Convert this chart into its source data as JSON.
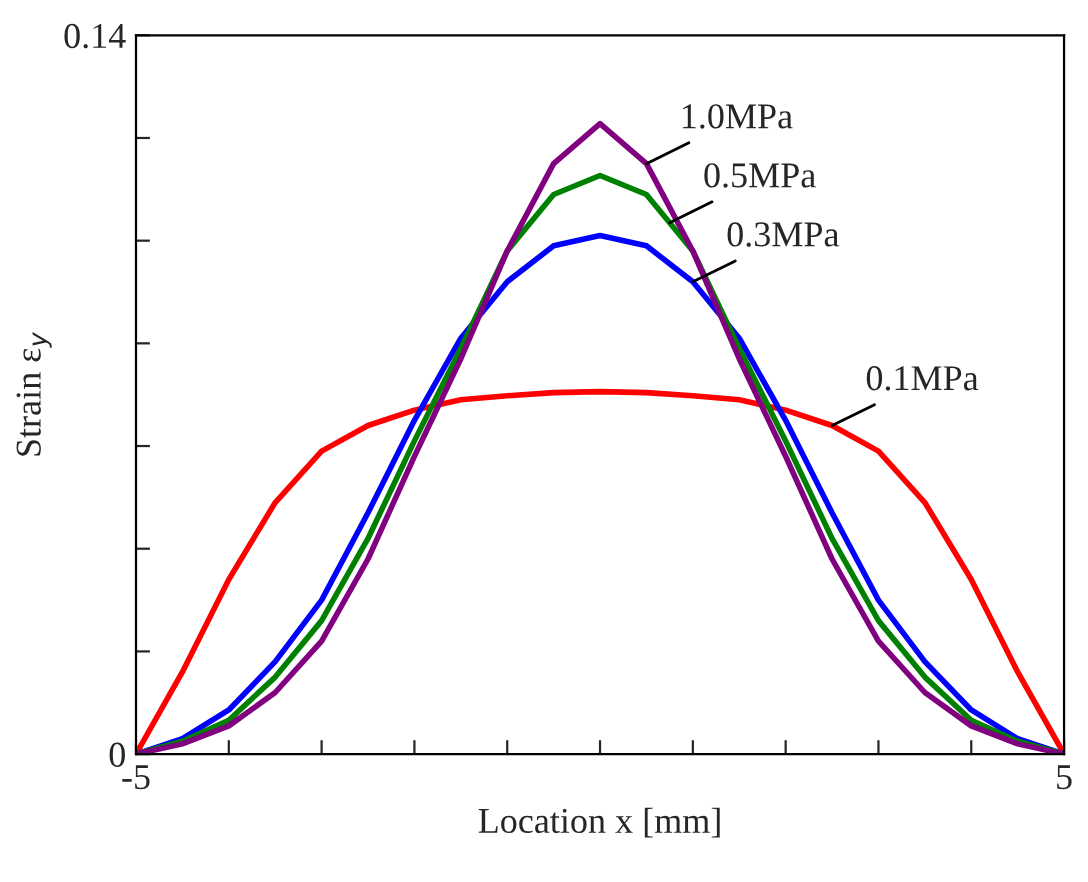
{
  "chart_data": {
    "type": "line",
    "xlabel": "Location x [mm]",
    "ylabel": "Strain ε$_{y}$",
    "x": [
      -5,
      -4.5,
      -4,
      -3.5,
      -3,
      -2.5,
      -2,
      -1.5,
      -1,
      -0.5,
      0,
      0.5,
      1,
      1.5,
      2,
      2.5,
      3,
      3.5,
      4,
      4.5,
      5
    ],
    "series": [
      {
        "color": "#ff0000",
        "values": [
          0,
          0.016,
          0.034,
          0.049,
          0.059,
          0.064,
          0.067,
          0.069,
          0.0698,
          0.0704,
          0.0706,
          0.0704,
          0.0698,
          0.069,
          0.067,
          0.064,
          0.059,
          0.049,
          0.034,
          0.016,
          0
        ]
      },
      {
        "color": "#0000ff",
        "values": [
          0,
          0.003,
          0.0086,
          0.018,
          0.03,
          0.047,
          0.065,
          0.081,
          0.092,
          0.099,
          0.101,
          0.099,
          0.092,
          0.081,
          0.065,
          0.047,
          0.03,
          0.018,
          0.0086,
          0.003,
          0
        ]
      },
      {
        "color": "#008000",
        "values": [
          0,
          0.0025,
          0.0066,
          0.015,
          0.026,
          0.042,
          0.061,
          0.079,
          0.098,
          0.109,
          0.1127,
          0.109,
          0.098,
          0.079,
          0.061,
          0.042,
          0.026,
          0.015,
          0.0066,
          0.0025,
          0
        ]
      },
      {
        "color": "#800080",
        "values": [
          0,
          0.002,
          0.0055,
          0.012,
          0.022,
          0.038,
          0.058,
          0.077,
          0.098,
          0.115,
          0.1228,
          0.115,
          0.098,
          0.077,
          0.058,
          0.038,
          0.022,
          0.012,
          0.0055,
          0.002,
          0
        ]
      }
    ],
    "annotations": [
      {
        "text": "1.0MPa",
        "x": 0.5,
        "y": 0.115
      },
      {
        "text": "0.5MPa",
        "x": 0.75,
        "y": 0.1035
      },
      {
        "text": "0.3MPa",
        "x": 1,
        "y": 0.092
      },
      {
        "text": "0.1MPa",
        "x": 2.5,
        "y": 0.064
      }
    ],
    "xlim": [
      -5,
      5
    ],
    "ylim": [
      0,
      0.14
    ],
    "xticks": [
      -5,
      {
        "value": -4,
        "label": null
      },
      {
        "value": -3,
        "label": null
      },
      {
        "value": -2,
        "label": null
      },
      {
        "value": -1,
        "label": null
      },
      {
        "value": 0,
        "label": null
      },
      {
        "value": 1,
        "label": null
      },
      {
        "value": 2,
        "label": null
      },
      {
        "value": 3,
        "label": null
      },
      {
        "value": 4,
        "label": null
      },
      5
    ],
    "yticks": [
      0,
      {
        "value": 0.02,
        "label": null
      },
      {
        "value": 0.04,
        "label": null
      },
      {
        "value": 0.06,
        "label": null
      },
      {
        "value": 0.08,
        "label": null
      },
      {
        "value": 0.1,
        "label": null
      },
      {
        "value": 0.12,
        "label": null
      },
      0.14
    ],
    "grid": false,
    "legend": false,
    "marker": "none",
    "line_style": "solid"
  }
}
